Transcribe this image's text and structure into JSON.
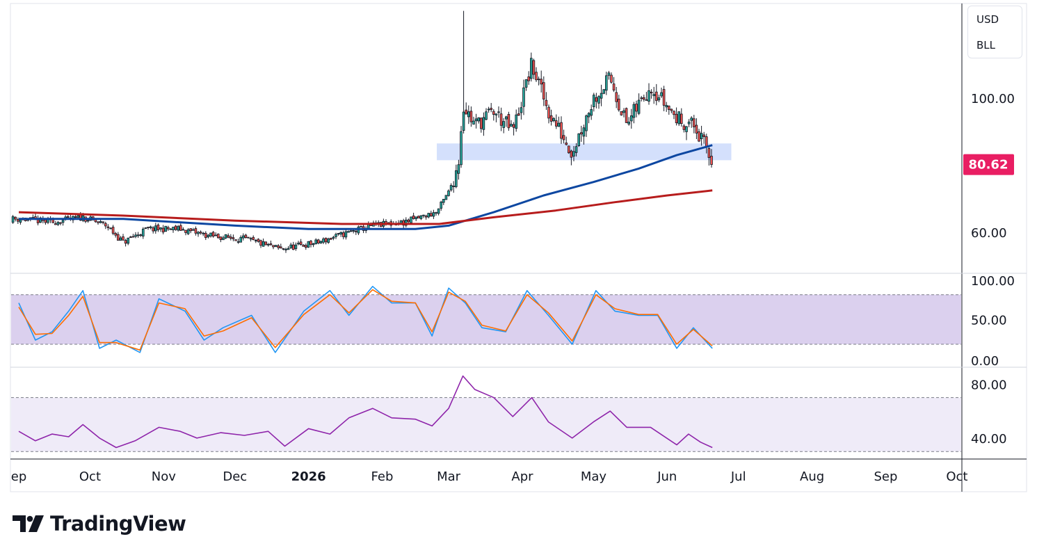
{
  "legend": {
    "currency": "USD",
    "symbol": "BLL"
  },
  "brand": {
    "name": "TradingView"
  },
  "colors": {
    "up": "#26a69a",
    "down": "#ef5350",
    "candle_body_dark": "#131722",
    "ma_fast": "#0d47a1",
    "ma_slow": "#b71c1c",
    "stoch_k": "#2196f3",
    "stoch_d": "#ff6d00",
    "rsi": "#8e24aa",
    "band": "#7e57c2",
    "zone": "#c5d5fb",
    "price_badge": "#e91e63"
  },
  "chart_data": [
    {
      "type": "candlestick",
      "panel": "price",
      "y_ticks": [
        "100.00",
        "60.00"
      ],
      "y_tick_values": [
        100,
        60
      ],
      "ylim": [
        48,
        128
      ],
      "last_price": "80.62",
      "last_price_value": 80.62,
      "support_zone": {
        "from": 81.5,
        "to": 86.5,
        "start": "2026-02-24",
        "end": "2026-06-28"
      },
      "x_labels": [
        "ep",
        "Oct",
        "Nov",
        "Dec",
        "2026",
        "Feb",
        "Mar",
        "Apr",
        "May",
        "Jun",
        "Jul",
        "Aug",
        "Sep",
        "Oct"
      ],
      "close_path": [
        [
          "2025-09-01",
          64
        ],
        [
          "2025-09-15",
          63
        ],
        [
          "2025-09-28",
          64.5
        ],
        [
          "2025-10-08",
          62
        ],
        [
          "2025-10-15",
          57
        ],
        [
          "2025-10-25",
          61
        ],
        [
          "2025-11-08",
          61
        ],
        [
          "2025-11-20",
          59
        ],
        [
          "2025-12-05",
          58
        ],
        [
          "2025-12-20",
          55
        ],
        [
          "2026-01-05",
          57
        ],
        [
          "2026-01-18",
          60
        ],
        [
          "2026-01-28",
          62
        ],
        [
          "2026-02-10",
          63
        ],
        [
          "2026-02-24",
          66
        ],
        [
          "2026-03-01",
          72
        ],
        [
          "2026-03-05",
          80
        ],
        [
          "2026-03-07",
          98
        ],
        [
          "2026-03-12",
          92
        ],
        [
          "2026-03-20",
          96
        ],
        [
          "2026-03-28",
          90
        ],
        [
          "2026-04-05",
          110
        ],
        [
          "2026-04-12",
          96
        ],
        [
          "2026-04-22",
          84
        ],
        [
          "2026-05-01",
          100
        ],
        [
          "2026-05-08",
          106
        ],
        [
          "2026-05-15",
          92
        ],
        [
          "2026-05-25",
          104
        ],
        [
          "2026-06-05",
          94
        ],
        [
          "2026-06-12",
          92
        ],
        [
          "2026-06-18",
          84
        ],
        [
          "2026-06-20",
          80.62
        ]
      ],
      "series": [
        {
          "name": "",
          "color_key": "ma_fast",
          "points": [
            [
              "2025-09-01",
              64
            ],
            [
              "2025-10-15",
              64
            ],
            [
              "2025-12-01",
              62
            ],
            [
              "2026-01-01",
              61
            ],
            [
              "2026-02-15",
              61
            ],
            [
              "2026-03-01",
              62
            ],
            [
              "2026-03-20",
              66
            ],
            [
              "2026-04-10",
              71
            ],
            [
              "2026-05-01",
              75
            ],
            [
              "2026-05-20",
              79
            ],
            [
              "2026-06-05",
              83
            ],
            [
              "2026-06-20",
              86
            ]
          ]
        },
        {
          "name": "",
          "color_key": "ma_slow",
          "points": [
            [
              "2025-09-01",
              66
            ],
            [
              "2025-10-15",
              65
            ],
            [
              "2025-12-01",
              63.5
            ],
            [
              "2026-01-15",
              62.5
            ],
            [
              "2026-02-25",
              62.5
            ],
            [
              "2026-03-20",
              64.5
            ],
            [
              "2026-04-15",
              66.5
            ],
            [
              "2026-05-10",
              69
            ],
            [
              "2026-06-01",
              71
            ],
            [
              "2026-06-20",
              72.5
            ]
          ]
        }
      ]
    },
    {
      "type": "line",
      "panel": "stochastic",
      "y_ticks": [
        "100.00",
        "50.00",
        "0.00"
      ],
      "y_tick_values": [
        100,
        50,
        0
      ],
      "ylim": [
        -7,
        105
      ],
      "band": [
        20,
        80
      ],
      "series": [
        {
          "name": "",
          "color_key": "stoch_k",
          "points": [
            [
              "2025-09-01",
              70
            ],
            [
              "2025-09-08",
              25
            ],
            [
              "2025-09-15",
              35
            ],
            [
              "2025-09-22",
              60
            ],
            [
              "2025-09-28",
              85
            ],
            [
              "2025-10-05",
              15
            ],
            [
              "2025-10-12",
              25
            ],
            [
              "2025-10-22",
              10
            ],
            [
              "2025-10-30",
              75
            ],
            [
              "2025-11-10",
              60
            ],
            [
              "2025-11-18",
              25
            ],
            [
              "2025-11-26",
              40
            ],
            [
              "2025-12-08",
              55
            ],
            [
              "2025-12-18",
              10
            ],
            [
              "2025-12-30",
              60
            ],
            [
              "2026-01-10",
              85
            ],
            [
              "2026-01-18",
              55
            ],
            [
              "2026-01-28",
              90
            ],
            [
              "2026-02-05",
              70
            ],
            [
              "2026-02-15",
              70
            ],
            [
              "2026-02-22",
              30
            ],
            [
              "2026-03-01",
              88
            ],
            [
              "2026-03-08",
              70
            ],
            [
              "2026-03-15",
              40
            ],
            [
              "2026-03-25",
              35
            ],
            [
              "2026-04-03",
              85
            ],
            [
              "2026-04-12",
              55
            ],
            [
              "2026-04-22",
              20
            ],
            [
              "2026-05-02",
              85
            ],
            [
              "2026-05-10",
              60
            ],
            [
              "2026-05-20",
              55
            ],
            [
              "2026-05-28",
              55
            ],
            [
              "2026-06-05",
              15
            ],
            [
              "2026-06-12",
              40
            ],
            [
              "2026-06-20",
              15
            ]
          ]
        },
        {
          "name": "",
          "color_key": "stoch_d",
          "points": [
            [
              "2025-09-01",
              65
            ],
            [
              "2025-09-08",
              32
            ],
            [
              "2025-09-15",
              33
            ],
            [
              "2025-09-22",
              55
            ],
            [
              "2025-09-28",
              78
            ],
            [
              "2025-10-05",
              22
            ],
            [
              "2025-10-12",
              22
            ],
            [
              "2025-10-22",
              13
            ],
            [
              "2025-10-30",
              70
            ],
            [
              "2025-11-10",
              63
            ],
            [
              "2025-11-18",
              30
            ],
            [
              "2025-11-26",
              36
            ],
            [
              "2025-12-08",
              52
            ],
            [
              "2025-12-18",
              16
            ],
            [
              "2025-12-30",
              56
            ],
            [
              "2026-01-10",
              80
            ],
            [
              "2026-01-18",
              58
            ],
            [
              "2026-01-28",
              86
            ],
            [
              "2026-02-05",
              72
            ],
            [
              "2026-02-15",
              70
            ],
            [
              "2026-02-22",
              35
            ],
            [
              "2026-03-01",
              83
            ],
            [
              "2026-03-08",
              72
            ],
            [
              "2026-03-15",
              43
            ],
            [
              "2026-03-25",
              36
            ],
            [
              "2026-04-03",
              80
            ],
            [
              "2026-04-12",
              58
            ],
            [
              "2026-04-22",
              24
            ],
            [
              "2026-05-02",
              80
            ],
            [
              "2026-05-10",
              63
            ],
            [
              "2026-05-20",
              56
            ],
            [
              "2026-05-28",
              56
            ],
            [
              "2026-06-05",
              20
            ],
            [
              "2026-06-12",
              38
            ],
            [
              "2026-06-20",
              18
            ]
          ]
        }
      ]
    },
    {
      "type": "line",
      "panel": "rsi",
      "y_ticks": [
        "80.00",
        "40.00"
      ],
      "y_tick_values": [
        80,
        40
      ],
      "ylim": [
        25,
        92
      ],
      "band": [
        30,
        70
      ],
      "series": [
        {
          "name": "",
          "color_key": "rsi",
          "points": [
            [
              "2025-09-01",
              45
            ],
            [
              "2025-09-08",
              38
            ],
            [
              "2025-09-15",
              43
            ],
            [
              "2025-09-22",
              41
            ],
            [
              "2025-09-28",
              50
            ],
            [
              "2025-10-05",
              40
            ],
            [
              "2025-10-12",
              33
            ],
            [
              "2025-10-20",
              38
            ],
            [
              "2025-10-30",
              48
            ],
            [
              "2025-11-08",
              45
            ],
            [
              "2025-11-15",
              40
            ],
            [
              "2025-11-25",
              44
            ],
            [
              "2025-12-05",
              42
            ],
            [
              "2025-12-15",
              45
            ],
            [
              "2025-12-22",
              34
            ],
            [
              "2026-01-01",
              47
            ],
            [
              "2026-01-10",
              43
            ],
            [
              "2026-01-18",
              55
            ],
            [
              "2026-01-28",
              62
            ],
            [
              "2026-02-05",
              55
            ],
            [
              "2026-02-15",
              54
            ],
            [
              "2026-02-22",
              49
            ],
            [
              "2026-03-01",
              62
            ],
            [
              "2026-03-07",
              86
            ],
            [
              "2026-03-12",
              76
            ],
            [
              "2026-03-20",
              70
            ],
            [
              "2026-03-28",
              56
            ],
            [
              "2026-04-05",
              70
            ],
            [
              "2026-04-12",
              52
            ],
            [
              "2026-04-22",
              40
            ],
            [
              "2026-05-01",
              52
            ],
            [
              "2026-05-08",
              60
            ],
            [
              "2026-05-15",
              48
            ],
            [
              "2026-05-25",
              48
            ],
            [
              "2026-06-05",
              35
            ],
            [
              "2026-06-10",
              43
            ],
            [
              "2026-06-15",
              37
            ],
            [
              "2026-06-20",
              33
            ]
          ]
        }
      ]
    }
  ]
}
